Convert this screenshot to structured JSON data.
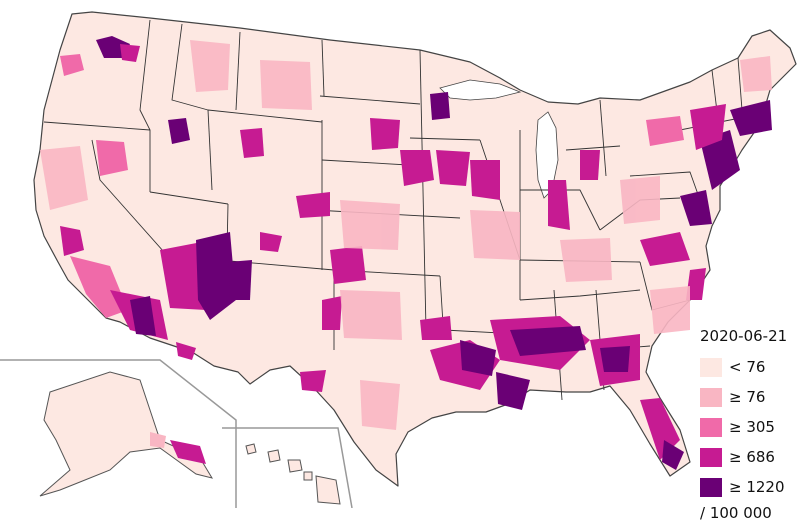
{
  "map": {
    "region": "United States counties",
    "date": "2020-06-21",
    "unit": "/ 100 000",
    "legend": [
      {
        "label": "< 76",
        "color": "#fde8e2"
      },
      {
        "label": "≥ 76",
        "color": "#f9b6c3"
      },
      {
        "label": "≥ 305",
        "color": "#f06aa9"
      },
      {
        "label": "≥ 686",
        "color": "#c61b92"
      },
      {
        "label": "≥ 1220",
        "color": "#6a0075"
      }
    ]
  }
}
